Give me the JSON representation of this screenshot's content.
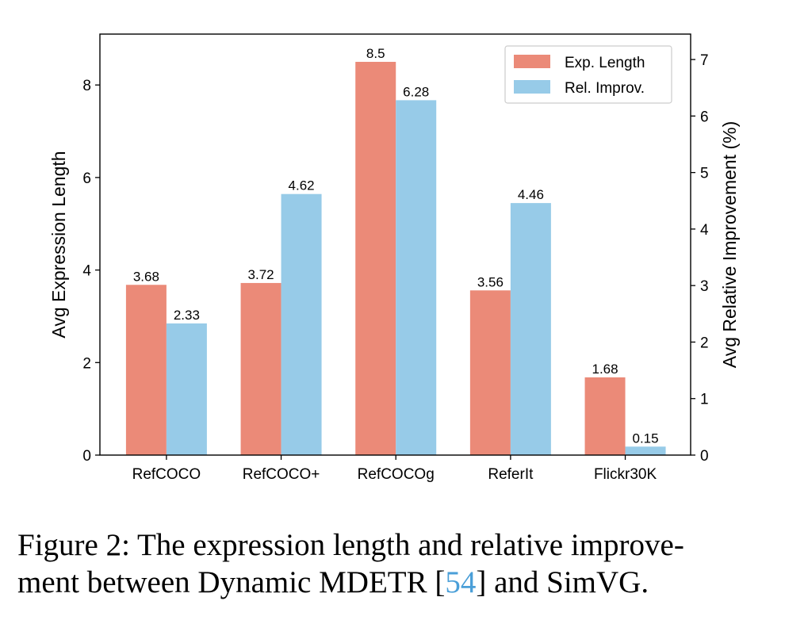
{
  "chart_data": {
    "type": "bar",
    "categories": [
      "RefCOCO",
      "RefCOCO+",
      "RefCOCOg",
      "ReferIt",
      "Flickr30K"
    ],
    "series": [
      {
        "name": "Exp. Length",
        "axis": "left",
        "color": "#eb8a78",
        "values": [
          3.68,
          3.72,
          8.5,
          3.56,
          1.68
        ],
        "labels": [
          "3.68",
          "3.72",
          "8.5",
          "3.56",
          "1.68"
        ]
      },
      {
        "name": "Rel. Improv.",
        "axis": "right",
        "color": "#97cbe8",
        "values": [
          2.33,
          4.62,
          6.28,
          4.46,
          0.15
        ],
        "labels": [
          "2.33",
          "4.62",
          "6.28",
          "4.46",
          "0.15"
        ]
      }
    ],
    "ylabel": "Avg Expression Length",
    "ylabel_right": "Avg Relative Improvement (%)",
    "ylim": [
      0,
      9.1
    ],
    "ylim_right": [
      0,
      7.45
    ],
    "yticks": [
      0,
      2,
      4,
      6,
      8
    ],
    "yticks_right": [
      0,
      1,
      2,
      3,
      4,
      5,
      6,
      7
    ],
    "legend_position": "top-right",
    "grid": false
  },
  "caption": {
    "prefix": "Figure 2: The expression length and relative improve-",
    "line2_start": "ment between Dynamic MDETR [",
    "citation": "54",
    "line2_end": "] and SimVG."
  }
}
